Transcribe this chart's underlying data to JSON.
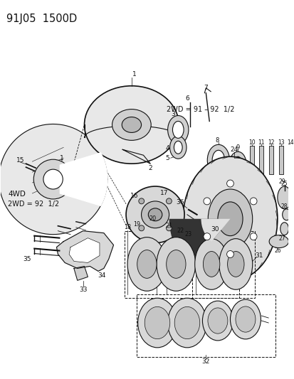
{
  "title": "91J05  1500D",
  "background_color": "#ffffff",
  "text_color": "#111111",
  "line_color": "#111111",
  "label_2wd1": "2WD = 91 – 92  1/2",
  "label_4wd": "4WD",
  "label_2wd2": "2WD = 92  1/2"
}
